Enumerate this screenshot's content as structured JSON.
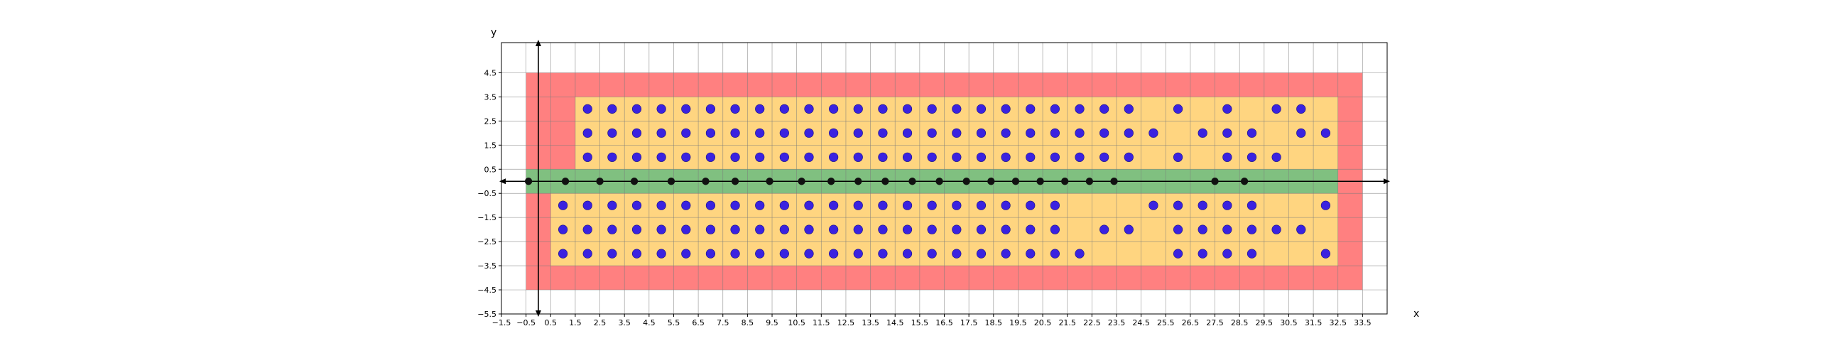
{
  "chart_data": {
    "type": "scatter",
    "title": "",
    "xlabel": "x",
    "ylabel": "y",
    "xlim": [
      -1.5,
      34.5
    ],
    "ylim": [
      -5.5,
      5.75
    ],
    "grid": true,
    "x_ticks": [
      "−1.5",
      "−0.5",
      "0.5",
      "1.5",
      "2.5",
      "3.5",
      "4.5",
      "5.5",
      "6.5",
      "7.5",
      "8.5",
      "9.5",
      "10.5",
      "11.5",
      "12.5",
      "13.5",
      "14.5",
      "15.5",
      "16.5",
      "17.5",
      "18.5",
      "19.5",
      "20.5",
      "21.5",
      "22.5",
      "23.5",
      "24.5",
      "25.5",
      "26.5",
      "27.5",
      "28.5",
      "29.5",
      "30.5",
      "31.5",
      "32.5",
      "33.5"
    ],
    "x_tick_values": [
      -1.5,
      -0.5,
      0.5,
      1.5,
      2.5,
      3.5,
      4.5,
      5.5,
      6.5,
      7.5,
      8.5,
      9.5,
      10.5,
      11.5,
      12.5,
      13.5,
      14.5,
      15.5,
      16.5,
      17.5,
      18.5,
      19.5,
      20.5,
      21.5,
      22.5,
      23.5,
      24.5,
      25.5,
      26.5,
      27.5,
      28.5,
      29.5,
      30.5,
      31.5,
      32.5,
      33.5
    ],
    "y_ticks": [
      "4.5",
      "3.5",
      "2.5",
      "1.5",
      "0.5",
      "−0.5",
      "−1.5",
      "−2.5",
      "−3.5",
      "−4.5",
      "−5.5"
    ],
    "y_tick_values": [
      4.5,
      3.5,
      2.5,
      1.5,
      0.5,
      -0.5,
      -1.5,
      -2.5,
      -3.5,
      -4.5,
      -5.5
    ],
    "regions": [
      {
        "color": "#ff8080",
        "x": [
          -0.5,
          33.5
        ],
        "y": [
          -4.5,
          4.5
        ]
      },
      {
        "color": "#ffd580",
        "x": [
          1.5,
          32.5
        ],
        "y": [
          0.5,
          3.5
        ]
      },
      {
        "color": "#ffd580",
        "x": [
          0.5,
          32.5
        ],
        "y": [
          -3.5,
          -0.5
        ]
      },
      {
        "color": "#80c080",
        "x": [
          -0.5,
          32.5
        ],
        "y": [
          -0.5,
          0.5
        ]
      }
    ],
    "blue_points_color": "#3a22e0",
    "blue_points": [
      [
        2,
        3
      ],
      [
        3,
        3
      ],
      [
        4,
        3
      ],
      [
        5,
        3
      ],
      [
        6,
        3
      ],
      [
        7,
        3
      ],
      [
        8,
        3
      ],
      [
        9,
        3
      ],
      [
        10,
        3
      ],
      [
        11,
        3
      ],
      [
        12,
        3
      ],
      [
        13,
        3
      ],
      [
        14,
        3
      ],
      [
        15,
        3
      ],
      [
        16,
        3
      ],
      [
        17,
        3
      ],
      [
        18,
        3
      ],
      [
        19,
        3
      ],
      [
        20,
        3
      ],
      [
        21,
        3
      ],
      [
        22,
        3
      ],
      [
        23,
        3
      ],
      [
        24,
        3
      ],
      [
        26,
        3
      ],
      [
        28,
        3
      ],
      [
        30,
        3
      ],
      [
        31,
        3
      ],
      [
        2,
        2
      ],
      [
        3,
        2
      ],
      [
        4,
        2
      ],
      [
        5,
        2
      ],
      [
        6,
        2
      ],
      [
        7,
        2
      ],
      [
        8,
        2
      ],
      [
        9,
        2
      ],
      [
        10,
        2
      ],
      [
        11,
        2
      ],
      [
        12,
        2
      ],
      [
        13,
        2
      ],
      [
        14,
        2
      ],
      [
        15,
        2
      ],
      [
        16,
        2
      ],
      [
        17,
        2
      ],
      [
        18,
        2
      ],
      [
        19,
        2
      ],
      [
        20,
        2
      ],
      [
        21,
        2
      ],
      [
        22,
        2
      ],
      [
        23,
        2
      ],
      [
        24,
        2
      ],
      [
        25,
        2
      ],
      [
        27,
        2
      ],
      [
        28,
        2
      ],
      [
        29,
        2
      ],
      [
        31,
        2
      ],
      [
        32,
        2
      ],
      [
        2,
        1
      ],
      [
        3,
        1
      ],
      [
        4,
        1
      ],
      [
        5,
        1
      ],
      [
        6,
        1
      ],
      [
        7,
        1
      ],
      [
        8,
        1
      ],
      [
        9,
        1
      ],
      [
        10,
        1
      ],
      [
        11,
        1
      ],
      [
        12,
        1
      ],
      [
        13,
        1
      ],
      [
        14,
        1
      ],
      [
        15,
        1
      ],
      [
        16,
        1
      ],
      [
        17,
        1
      ],
      [
        18,
        1
      ],
      [
        19,
        1
      ],
      [
        20,
        1
      ],
      [
        21,
        1
      ],
      [
        22,
        1
      ],
      [
        23,
        1
      ],
      [
        24,
        1
      ],
      [
        26,
        1
      ],
      [
        28,
        1
      ],
      [
        29,
        1
      ],
      [
        30,
        1
      ],
      [
        1,
        -1
      ],
      [
        2,
        -1
      ],
      [
        3,
        -1
      ],
      [
        4,
        -1
      ],
      [
        5,
        -1
      ],
      [
        6,
        -1
      ],
      [
        7,
        -1
      ],
      [
        8,
        -1
      ],
      [
        9,
        -1
      ],
      [
        10,
        -1
      ],
      [
        11,
        -1
      ],
      [
        12,
        -1
      ],
      [
        13,
        -1
      ],
      [
        14,
        -1
      ],
      [
        15,
        -1
      ],
      [
        16,
        -1
      ],
      [
        17,
        -1
      ],
      [
        18,
        -1
      ],
      [
        19,
        -1
      ],
      [
        20,
        -1
      ],
      [
        21,
        -1
      ],
      [
        25,
        -1
      ],
      [
        26,
        -1
      ],
      [
        27,
        -1
      ],
      [
        28,
        -1
      ],
      [
        29,
        -1
      ],
      [
        32,
        -1
      ],
      [
        1,
        -2
      ],
      [
        2,
        -2
      ],
      [
        3,
        -2
      ],
      [
        4,
        -2
      ],
      [
        5,
        -2
      ],
      [
        6,
        -2
      ],
      [
        7,
        -2
      ],
      [
        8,
        -2
      ],
      [
        9,
        -2
      ],
      [
        10,
        -2
      ],
      [
        11,
        -2
      ],
      [
        12,
        -2
      ],
      [
        13,
        -2
      ],
      [
        14,
        -2
      ],
      [
        15,
        -2
      ],
      [
        16,
        -2
      ],
      [
        17,
        -2
      ],
      [
        18,
        -2
      ],
      [
        19,
        -2
      ],
      [
        20,
        -2
      ],
      [
        21,
        -2
      ],
      [
        23,
        -2
      ],
      [
        24,
        -2
      ],
      [
        26,
        -2
      ],
      [
        27,
        -2
      ],
      [
        28,
        -2
      ],
      [
        29,
        -2
      ],
      [
        30,
        -2
      ],
      [
        31,
        -2
      ],
      [
        1,
        -3
      ],
      [
        2,
        -3
      ],
      [
        3,
        -3
      ],
      [
        4,
        -3
      ],
      [
        5,
        -3
      ],
      [
        6,
        -3
      ],
      [
        7,
        -3
      ],
      [
        8,
        -3
      ],
      [
        9,
        -3
      ],
      [
        10,
        -3
      ],
      [
        11,
        -3
      ],
      [
        12,
        -3
      ],
      [
        13,
        -3
      ],
      [
        14,
        -3
      ],
      [
        15,
        -3
      ],
      [
        16,
        -3
      ],
      [
        17,
        -3
      ],
      [
        18,
        -3
      ],
      [
        19,
        -3
      ],
      [
        20,
        -3
      ],
      [
        21,
        -3
      ],
      [
        22,
        -3
      ],
      [
        26,
        -3
      ],
      [
        27,
        -3
      ],
      [
        28,
        -3
      ],
      [
        29,
        -3
      ],
      [
        32,
        -3
      ]
    ],
    "black_points_color": "#111111",
    "black_points": [
      [
        -0.4,
        0
      ],
      [
        1.1,
        0
      ],
      [
        2.5,
        0
      ],
      [
        3.9,
        0
      ],
      [
        5.4,
        0
      ],
      [
        6.8,
        0
      ],
      [
        8.0,
        0
      ],
      [
        9.4,
        0
      ],
      [
        10.7,
        0
      ],
      [
        11.9,
        0
      ],
      [
        13.0,
        0
      ],
      [
        14.1,
        0
      ],
      [
        15.2,
        0
      ],
      [
        16.3,
        0
      ],
      [
        17.4,
        0
      ],
      [
        18.4,
        0
      ],
      [
        19.4,
        0
      ],
      [
        20.4,
        0
      ],
      [
        21.4,
        0
      ],
      [
        22.4,
        0
      ],
      [
        23.4,
        0
      ],
      [
        27.5,
        0
      ],
      [
        28.7,
        0
      ]
    ]
  }
}
